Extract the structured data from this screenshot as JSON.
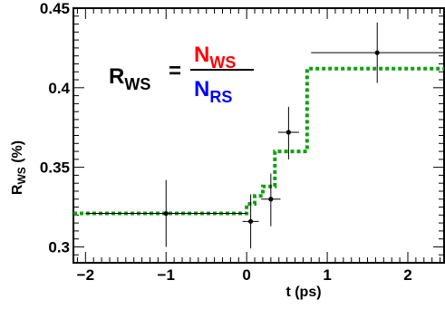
{
  "chart_data": {
    "type": "scatter",
    "xlabel": "t (ps)",
    "ylabel": {
      "main": "R",
      "sub": "WS",
      "unit": " (%)"
    },
    "xlim": [
      -2.15,
      2.45
    ],
    "ylim": [
      0.29,
      0.45
    ],
    "x_ticks": [
      -2,
      -1,
      0,
      1,
      2
    ],
    "x_tick_labels": [
      "−2",
      "−1",
      "0",
      "1",
      "2"
    ],
    "y_ticks": [
      0.3,
      0.35,
      0.4,
      0.45
    ],
    "y_tick_labels": [
      "0.3",
      "0.35",
      "0.4",
      "0.45"
    ],
    "grid": false,
    "legend": "none",
    "formula": {
      "lhs_main": "R",
      "lhs_sub": "WS",
      "equals": "=",
      "num_main": "N",
      "num_sub": "WS",
      "den_main": "N",
      "den_sub": "RS",
      "num_color": "#ff0000",
      "den_color": "#0000ff"
    },
    "points": [
      {
        "x": -1.0,
        "y": 0.321,
        "xerr": [
          1.0,
          1.0
        ],
        "yerr": [
          0.021,
          0.021
        ]
      },
      {
        "x": 0.05,
        "y": 0.316,
        "xerr": [
          0.1,
          0.1
        ],
        "yerr": [
          0.017,
          0.017
        ]
      },
      {
        "x": 0.3,
        "y": 0.33,
        "xerr": [
          0.12,
          0.12
        ],
        "yerr": [
          0.017,
          0.016
        ]
      },
      {
        "x": 0.52,
        "y": 0.372,
        "xerr": [
          0.13,
          0.13
        ],
        "yerr": [
          0.017,
          0.016
        ]
      },
      {
        "x": 1.62,
        "y": 0.422,
        "xerr": [
          0.82,
          0.9
        ],
        "yerr": [
          0.019,
          0.019
        ]
      }
    ],
    "point_color": "#000000",
    "fit_step": {
      "color": "#11a011",
      "x": [
        -2.15,
        0.0,
        0.0,
        0.1,
        0.1,
        0.2,
        0.2,
        0.35,
        0.35,
        0.75,
        0.75,
        2.45
      ],
      "y": [
        0.321,
        0.321,
        0.327,
        0.327,
        0.332,
        0.332,
        0.338,
        0.338,
        0.36,
        0.36,
        0.412,
        0.412
      ]
    }
  }
}
